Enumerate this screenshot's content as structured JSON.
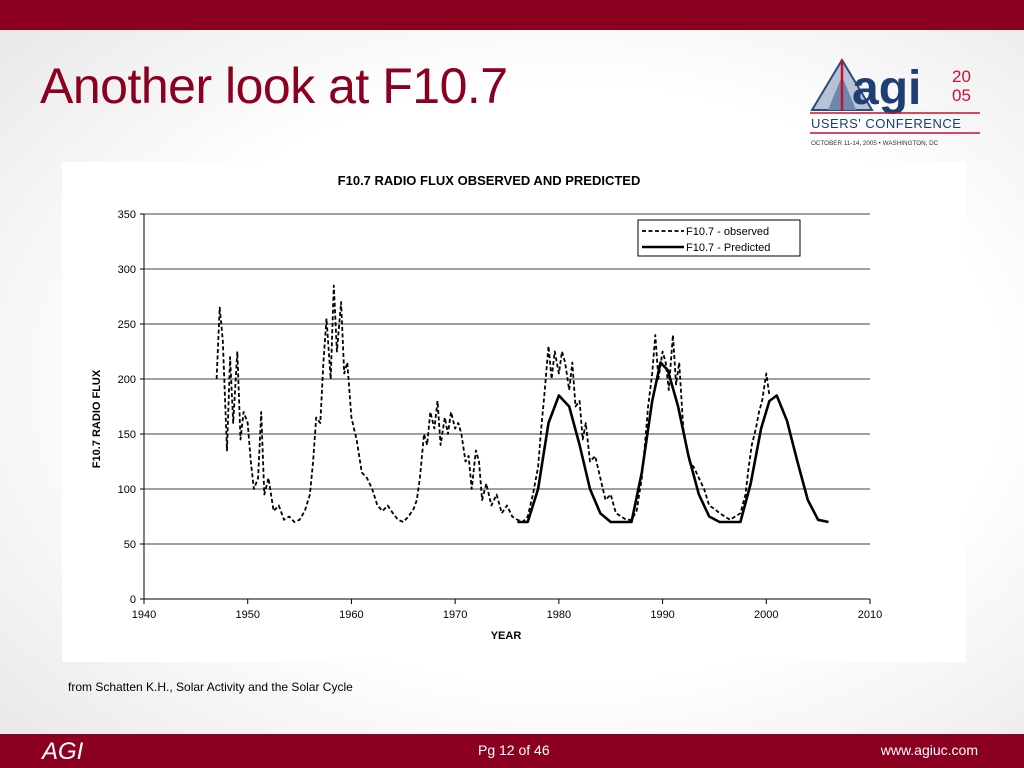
{
  "slide": {
    "title": "Another look at F10.7",
    "citation": "from Schatten K.H., Solar Activity and the Solar Cycle"
  },
  "logo": {
    "wordmark": "agi",
    "year_top": "20",
    "year_bottom": "05",
    "tagline": "USERS' CONFERENCE",
    "dateline": "OCTOBER 11-14, 2005 • WASHINGTON, DC"
  },
  "footer": {
    "brand": "AGI",
    "page": "Pg 12 of 46",
    "url": "www.agiuc.com"
  },
  "colors": {
    "brand": "#8b0020",
    "text": "#000000",
    "panel": "#ffffff"
  },
  "chart_data": {
    "type": "line",
    "title": "F10.7 RADIO FLUX OBSERVED AND PREDICTED",
    "xlabel": "YEAR",
    "ylabel": "F10.7 RADIO FLUX",
    "xlim": [
      1940,
      2010
    ],
    "ylim": [
      0,
      350
    ],
    "xticks": [
      1940,
      1950,
      1960,
      1970,
      1980,
      1990,
      2000,
      2010
    ],
    "yticks": [
      0,
      50,
      100,
      150,
      200,
      250,
      300,
      350
    ],
    "grid": "horizontal",
    "legend": "top-right",
    "series": [
      {
        "name": "F10.7 - observed",
        "style": "dashed",
        "x": [
          1947.0,
          1947.3,
          1947.6,
          1948.0,
          1948.3,
          1948.6,
          1949.0,
          1949.3,
          1949.6,
          1950.0,
          1950.3,
          1950.6,
          1951.0,
          1951.3,
          1951.6,
          1952.0,
          1952.5,
          1953.0,
          1953.5,
          1954.0,
          1954.5,
          1955.0,
          1955.5,
          1956.0,
          1956.3,
          1956.6,
          1957.0,
          1957.3,
          1957.6,
          1958.0,
          1958.3,
          1958.6,
          1959.0,
          1959.3,
          1959.6,
          1960.0,
          1960.5,
          1961.0,
          1961.5,
          1962.0,
          1962.5,
          1963.0,
          1963.5,
          1964.0,
          1964.5,
          1965.0,
          1965.5,
          1966.0,
          1966.3,
          1966.6,
          1967.0,
          1967.3,
          1967.6,
          1968.0,
          1968.3,
          1968.6,
          1969.0,
          1969.3,
          1969.6,
          1970.0,
          1970.3,
          1970.6,
          1971.0,
          1971.3,
          1971.6,
          1972.0,
          1972.3,
          1972.6,
          1973.0,
          1973.5,
          1974.0,
          1974.5,
          1975.0,
          1975.5,
          1976.0,
          1976.5,
          1977.0,
          1977.5,
          1978.0,
          1978.3,
          1978.6,
          1979.0,
          1979.3,
          1979.6,
          1980.0,
          1980.3,
          1980.6,
          1981.0,
          1981.3,
          1981.6,
          1982.0,
          1982.3,
          1982.6,
          1983.0,
          1983.5,
          1984.0,
          1984.5,
          1985.0,
          1985.5,
          1986.0,
          1986.5,
          1987.0,
          1987.5,
          1988.0,
          1988.3,
          1988.6,
          1989.0,
          1989.3,
          1989.6,
          1990.0,
          1990.3,
          1990.6,
          1991.0,
          1991.3,
          1991.6,
          1992.0,
          1992.3,
          1992.6,
          1993.0,
          1993.5,
          1994.0,
          1994.5,
          1995.0,
          1995.5,
          1996.0,
          1996.5,
          1997.0,
          1997.5,
          1998.0,
          1998.3,
          1998.6,
          1999.0,
          1999.3,
          1999.6,
          2000.0,
          2000.3
        ],
        "y": [
          200,
          265,
          235,
          135,
          220,
          160,
          225,
          145,
          170,
          160,
          125,
          100,
          110,
          170,
          95,
          110,
          80,
          85,
          72,
          75,
          70,
          72,
          80,
          95,
          125,
          165,
          160,
          215,
          255,
          200,
          285,
          225,
          270,
          205,
          215,
          165,
          145,
          115,
          110,
          100,
          85,
          80,
          85,
          78,
          72,
          70,
          75,
          82,
          90,
          110,
          150,
          140,
          170,
          155,
          180,
          140,
          165,
          150,
          170,
          155,
          160,
          150,
          125,
          130,
          100,
          135,
          125,
          90,
          105,
          85,
          95,
          78,
          85,
          75,
          72,
          70,
          75,
          95,
          120,
          155,
          185,
          230,
          200,
          225,
          205,
          225,
          215,
          190,
          215,
          175,
          180,
          145,
          160,
          125,
          130,
          110,
          90,
          95,
          78,
          75,
          72,
          72,
          80,
          110,
          140,
          175,
          205,
          240,
          200,
          225,
          215,
          190,
          240,
          195,
          215,
          155,
          140,
          125,
          120,
          110,
          100,
          85,
          82,
          78,
          75,
          72,
          75,
          78,
          95,
          120,
          140,
          155,
          170,
          180,
          205,
          185
        ]
      },
      {
        "name": "F10.7 - Predicted",
        "style": "solid",
        "x": [
          1976.0,
          1977.0,
          1978.0,
          1979.0,
          1980.0,
          1981.0,
          1982.0,
          1983.0,
          1984.0,
          1985.0,
          1986.0,
          1987.0,
          1988.0,
          1989.0,
          1989.8,
          1990.5,
          1991.5,
          1992.5,
          1993.5,
          1994.5,
          1995.5,
          1996.5,
          1997.5,
          1998.5,
          1999.5,
          2000.3,
          2001.0,
          2002.0,
          2003.0,
          2004.0,
          2005.0,
          2006.0
        ],
        "y": [
          70,
          70,
          100,
          160,
          185,
          175,
          140,
          100,
          78,
          70,
          70,
          70,
          115,
          180,
          215,
          208,
          175,
          130,
          95,
          75,
          70,
          70,
          70,
          105,
          155,
          180,
          185,
          162,
          125,
          90,
          72,
          70
        ]
      }
    ]
  }
}
